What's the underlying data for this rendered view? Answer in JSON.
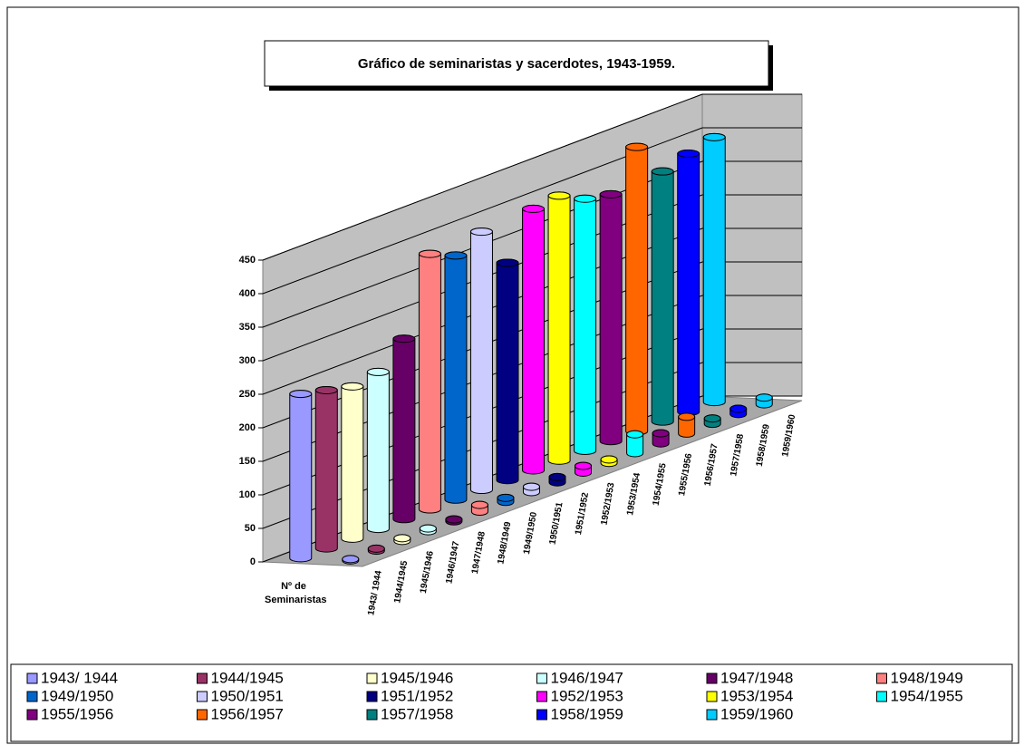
{
  "chart_data": {
    "type": "bar3d",
    "title": "Gráfico de seminaristas y sacerdotes, 1943-1959.",
    "categories": [
      "Nº de Seminaristas",
      null
    ],
    "ylim": [
      0,
      450
    ],
    "yticks": [
      0,
      50,
      100,
      150,
      200,
      250,
      300,
      350,
      400,
      450
    ],
    "grid": true,
    "series": [
      {
        "name": "1943/ 1944",
        "color": "#9999ff",
        "values": [
          245,
          2
        ]
      },
      {
        "name": "1944/1945",
        "color": "#993366",
        "values": [
          236,
          3
        ]
      },
      {
        "name": "1945/1946",
        "color": "#ffffcc",
        "values": [
          227,
          4
        ]
      },
      {
        "name": "1946/1947",
        "color": "#ccffff",
        "values": [
          234,
          4
        ]
      },
      {
        "name": "1947/1948",
        "color": "#660066",
        "values": [
          269,
          3
        ]
      },
      {
        "name": "1948/1949",
        "color": "#ff8080",
        "values": [
          381,
          10
        ]
      },
      {
        "name": "1949/1950",
        "color": "#0066cc",
        "values": [
          364,
          6
        ]
      },
      {
        "name": "1950/1951",
        "color": "#ccccff",
        "values": [
          385,
          8
        ]
      },
      {
        "name": "1951/1952",
        "color": "#000080",
        "values": [
          324,
          8
        ]
      },
      {
        "name": "1952/1953",
        "color": "#ff00ff",
        "values": [
          390,
          10
        ]
      },
      {
        "name": "1953/1954",
        "color": "#ffff00",
        "values": [
          395,
          5
        ]
      },
      {
        "name": "1954/1955",
        "color": "#00ffff",
        "values": [
          376,
          28
        ]
      },
      {
        "name": "1955/1956",
        "color": "#800080",
        "values": [
          368,
          15
        ]
      },
      {
        "name": "1956/1957",
        "color": "#ff6600",
        "values": [
          424,
          25
        ]
      },
      {
        "name": "1957/1958",
        "color": "#008080",
        "values": [
          373,
          8
        ]
      },
      {
        "name": "1958/1959",
        "color": "#0000ff",
        "values": [
          385,
          8
        ]
      },
      {
        "name": "1959/1960",
        "color": "#00ccff",
        "values": [
          395,
          10
        ]
      }
    ]
  }
}
